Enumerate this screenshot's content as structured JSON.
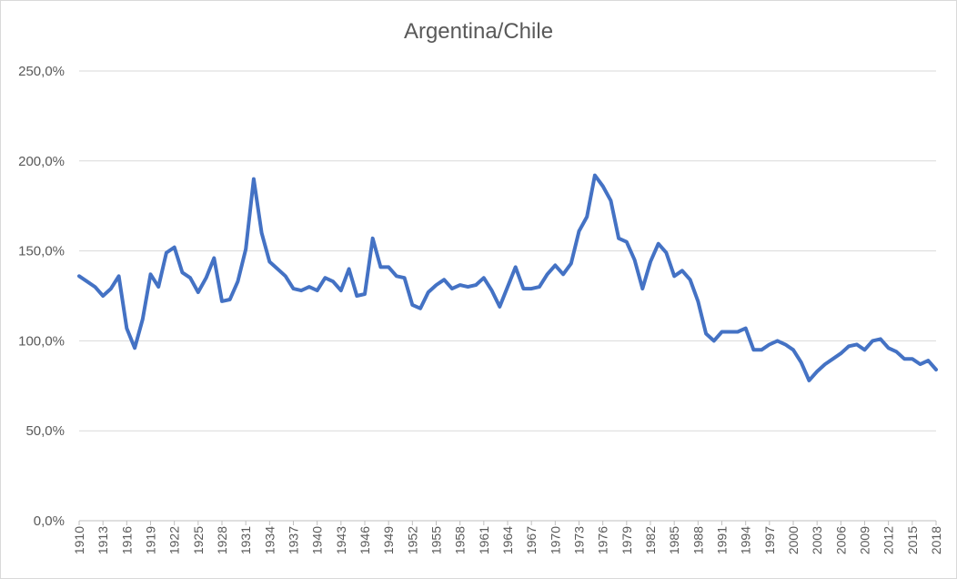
{
  "chart_data": {
    "type": "line",
    "title": "Argentina/Chile",
    "xlabel": "",
    "ylabel": "",
    "grid": true,
    "legend": "none",
    "ylim": [
      0,
      250
    ],
    "yticks": [
      "0,0%",
      "50,0%",
      "100,0%",
      "150,0%",
      "200,0%",
      "250,0%"
    ],
    "xticks": [
      "1910",
      "1913",
      "1916",
      "1919",
      "1922",
      "1925",
      "1928",
      "1931",
      "1934",
      "1937",
      "1940",
      "1943",
      "1946",
      "1949",
      "1952",
      "1955",
      "1958",
      "1961",
      "1964",
      "1967",
      "1970",
      "1973",
      "1976",
      "1979",
      "1982",
      "1985",
      "1988",
      "1991",
      "1994",
      "1997",
      "2000",
      "2003",
      "2006",
      "2009",
      "2012",
      "2015",
      "2018"
    ],
    "line_color": "#4472c4",
    "series": [
      {
        "x": [
          1910,
          1911,
          1912,
          1913,
          1914,
          1915,
          1916,
          1917,
          1918,
          1919,
          1920,
          1921,
          1922,
          1923,
          1924,
          1925,
          1926,
          1927,
          1928,
          1929,
          1930,
          1931,
          1932,
          1933,
          1934,
          1935,
          1936,
          1937,
          1938,
          1939,
          1940,
          1941,
          1942,
          1943,
          1944,
          1945,
          1946,
          1947,
          1948,
          1949,
          1950,
          1951,
          1952,
          1953,
          1954,
          1955,
          1956,
          1957,
          1958,
          1959,
          1960,
          1961,
          1962,
          1963,
          1964,
          1965,
          1966,
          1967,
          1968,
          1969,
          1970,
          1971,
          1972,
          1973,
          1974,
          1975,
          1976,
          1977,
          1978,
          1979,
          1980,
          1981,
          1982,
          1983,
          1984,
          1985,
          1986,
          1987,
          1988,
          1989,
          1990,
          1991,
          1992,
          1993,
          1994,
          1995,
          1996,
          1997,
          1998,
          1999,
          2000,
          2001,
          2002,
          2003,
          2004,
          2005,
          2006,
          2007,
          2008,
          2009,
          2010,
          2011,
          2012,
          2013,
          2014,
          2015,
          2016,
          2017,
          2018
        ],
        "values": [
          136,
          133,
          130,
          125,
          129,
          136,
          107,
          96,
          112,
          137,
          130,
          149,
          152,
          138,
          135,
          127,
          135,
          146,
          122,
          123,
          133,
          151,
          190,
          160,
          144,
          140,
          136,
          129,
          128,
          130,
          128,
          135,
          133,
          128,
          140,
          125,
          126,
          157,
          141,
          141,
          136,
          135,
          120,
          118,
          127,
          131,
          134,
          129,
          131,
          130,
          131,
          135,
          128,
          119,
          130,
          141,
          129,
          129,
          130,
          137,
          142,
          137,
          143,
          161,
          169,
          192,
          186,
          178,
          157,
          155,
          145,
          129,
          144,
          154,
          149,
          136,
          139,
          134,
          122,
          104,
          100,
          105,
          105,
          105,
          107,
          95,
          95,
          98,
          100,
          98,
          95,
          88,
          78,
          83,
          87,
          90,
          93,
          97,
          98,
          95,
          100,
          101,
          96,
          94,
          90,
          90,
          87,
          89,
          84
        ]
      }
    ]
  }
}
